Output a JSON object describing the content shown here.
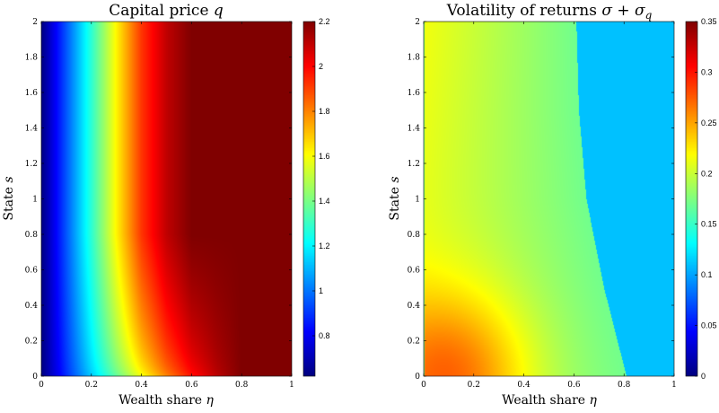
{
  "chart_data": [
    {
      "type": "heatmap",
      "title": "Capital price q",
      "title_plain": "Capital price ",
      "title_symbol": "q",
      "xlabel_plain": "Wealth share ",
      "xlabel_symbol": "η",
      "ylabel_plain": "State ",
      "ylabel_symbol": "s",
      "xlim": [
        0,
        1
      ],
      "ylim": [
        0,
        2
      ],
      "xticks": [
        "0",
        "0.2",
        "0.4",
        "0.6",
        "0.8",
        "1"
      ],
      "yticks": [
        "0",
        "0.2",
        "0.4",
        "0.6",
        "0.8",
        "1",
        "1.2",
        "1.4",
        "1.6",
        "1.8",
        "2"
      ],
      "colormap": "jet",
      "clim": [
        0.62,
        2.2
      ],
      "colorbar_ticks": [
        "0.8",
        "1",
        "1.2",
        "1.4",
        "1.6",
        "1.8",
        "2",
        "2.2"
      ],
      "colorbar_tick_values": [
        0.8,
        1.0,
        1.2,
        1.4,
        1.6,
        1.8,
        2.0,
        2.2
      ],
      "sample_profile": {
        "eta": [
          0,
          0.1,
          0.2,
          0.3,
          0.4,
          0.5,
          0.6,
          0.7,
          0.8,
          1.0
        ],
        "q_at_s_2": [
          0.62,
          0.95,
          1.28,
          1.62,
          1.92,
          2.1,
          2.2,
          2.2,
          2.2,
          2.2
        ],
        "q_at_s_0": [
          0.62,
          0.88,
          1.12,
          1.35,
          1.57,
          1.78,
          1.96,
          2.1,
          2.2,
          2.2
        ]
      }
    },
    {
      "type": "heatmap",
      "title": "Volatility of returns σ + σq",
      "title_plain": "Volatility of returns ",
      "title_symbol": "σ + σ",
      "title_subscript": "q",
      "xlabel_plain": "Wealth share ",
      "xlabel_symbol": "η",
      "ylabel_plain": "State ",
      "ylabel_symbol": "s",
      "xlim": [
        0,
        1
      ],
      "ylim": [
        0,
        2
      ],
      "xticks": [
        "0",
        "0.2",
        "0.4",
        "0.6",
        "0.8",
        "1"
      ],
      "yticks": [
        "0",
        "0.2",
        "0.4",
        "0.6",
        "0.8",
        "1",
        "1.2",
        "1.4",
        "1.6",
        "1.8",
        "2"
      ],
      "colormap": "jet",
      "clim": [
        0,
        0.35
      ],
      "colorbar_ticks": [
        "0",
        "0.05",
        "0.1",
        "0.15",
        "0.2",
        "0.25",
        "0.3",
        "0.35"
      ],
      "colorbar_tick_values": [
        0,
        0.05,
        0.1,
        0.15,
        0.2,
        0.25,
        0.3,
        0.35
      ],
      "constant_region_value": 0.11,
      "boundary_eta": {
        "s": [
          0,
          0.5,
          1.0,
          1.5,
          2.0
        ],
        "eta": [
          0.81,
          0.72,
          0.65,
          0.62,
          0.61
        ]
      },
      "peak": {
        "eta": 0.15,
        "s": 0,
        "value": 0.3
      }
    }
  ]
}
